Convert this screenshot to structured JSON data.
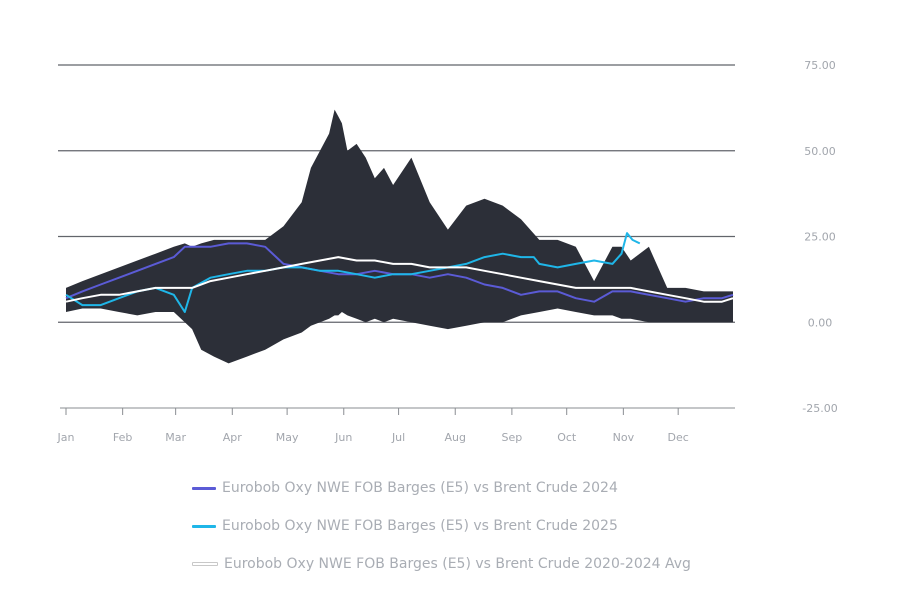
{
  "chart_data": {
    "type": "area",
    "x_axis": {
      "categories": [
        "Jan",
        "Feb",
        "Mar",
        "Apr",
        "May",
        "Jun",
        "Jul",
        "Aug",
        "Sep",
        "Oct",
        "Nov",
        "Dec"
      ],
      "day_range": [
        1,
        366
      ]
    },
    "y_axis": {
      "ticks": [
        "75.00",
        "50.00",
        "25.00",
        "0.00",
        "-25.00"
      ],
      "tick_values": [
        75,
        50,
        25,
        0,
        -25
      ],
      "ylim": [
        -25,
        75
      ],
      "position": "right",
      "grid": true
    },
    "range_band": {
      "day": [
        1,
        10,
        20,
        30,
        40,
        50,
        60,
        66,
        70,
        75,
        82,
        90,
        100,
        110,
        120,
        130,
        135,
        140,
        145,
        148,
        150,
        152,
        155,
        160,
        165,
        170,
        175,
        180,
        190,
        200,
        210,
        220,
        230,
        240,
        250,
        260,
        270,
        280,
        290,
        300,
        305,
        310,
        320,
        330,
        340,
        350,
        360,
        366
      ],
      "high": [
        10,
        12,
        14,
        16,
        18,
        20,
        22,
        23,
        22,
        23,
        24,
        24,
        24,
        24,
        28,
        35,
        45,
        50,
        55,
        62,
        60,
        58,
        50,
        52,
        48,
        42,
        45,
        40,
        48,
        35,
        27,
        34,
        36,
        34,
        30,
        24,
        24,
        22,
        12,
        22,
        22,
        18,
        22,
        10,
        10,
        9,
        9,
        9
      ],
      "low": [
        3,
        4,
        4,
        3,
        2,
        3,
        3,
        0,
        -2,
        -8,
        -10,
        -12,
        -10,
        -8,
        -5,
        -3,
        -1,
        0,
        1,
        2,
        2,
        3,
        2,
        1,
        0,
        1,
        0,
        1,
        0,
        -1,
        -2,
        -1,
        0,
        0,
        2,
        3,
        4,
        3,
        2,
        2,
        1,
        1,
        0,
        0,
        0,
        0,
        0,
        0
      ]
    },
    "series": [
      {
        "name": "Eurobob Oxy NWE FOB Barges (E5) vs Brent Crude 2024",
        "color": "#5b5bd6",
        "day": [
          1,
          10,
          20,
          30,
          40,
          50,
          60,
          66,
          70,
          80,
          90,
          100,
          110,
          120,
          130,
          140,
          150,
          160,
          170,
          180,
          190,
          200,
          210,
          220,
          230,
          240,
          250,
          260,
          270,
          280,
          290,
          300,
          310,
          320,
          330,
          340,
          350,
          360,
          366
        ],
        "values": [
          7,
          9,
          11,
          13,
          15,
          17,
          19,
          22,
          22,
          22,
          23,
          23,
          22,
          17,
          16,
          15,
          14,
          14,
          15,
          14,
          14,
          13,
          14,
          13,
          11,
          10,
          8,
          9,
          9,
          7,
          6,
          9,
          9,
          8,
          7,
          6,
          7,
          7,
          8
        ]
      },
      {
        "name": "Eurobob Oxy NWE FOB Barges (E5) vs Brent Crude 2025",
        "color": "#1fb6e8",
        "day": [
          1,
          10,
          20,
          30,
          40,
          50,
          60,
          66,
          70,
          80,
          90,
          100,
          110,
          120,
          130,
          140,
          150,
          160,
          170,
          180,
          190,
          200,
          210,
          220,
          230,
          240,
          250,
          257,
          260,
          270,
          280,
          290,
          300,
          305,
          308,
          311,
          315
        ],
        "values": [
          8,
          5,
          5,
          7,
          9,
          10,
          8,
          3,
          10,
          13,
          14,
          15,
          15,
          16,
          16,
          15,
          15,
          14,
          13,
          14,
          14,
          15,
          16,
          17,
          19,
          20,
          19,
          19,
          17,
          16,
          17,
          18,
          17,
          20,
          26,
          24,
          23
        ]
      },
      {
        "name": "Eurobob Oxy NWE FOB Barges (E5) vs Brent Crude 2020-2024 Avg",
        "color": "#ffffff",
        "day": [
          1,
          10,
          20,
          30,
          40,
          50,
          60,
          70,
          80,
          90,
          100,
          110,
          120,
          130,
          140,
          150,
          160,
          170,
          180,
          190,
          200,
          210,
          220,
          230,
          240,
          250,
          260,
          270,
          280,
          290,
          300,
          305,
          310,
          320,
          330,
          340,
          350,
          360,
          366
        ],
        "values": [
          6,
          7,
          8,
          8,
          9,
          10,
          10,
          10,
          12,
          13,
          14,
          15,
          16,
          17,
          18,
          19,
          18,
          18,
          17,
          17,
          16,
          16,
          16,
          15,
          14,
          13,
          12,
          11,
          10,
          10,
          10,
          10,
          10,
          9,
          8,
          7,
          6,
          6,
          7
        ]
      }
    ]
  }
}
